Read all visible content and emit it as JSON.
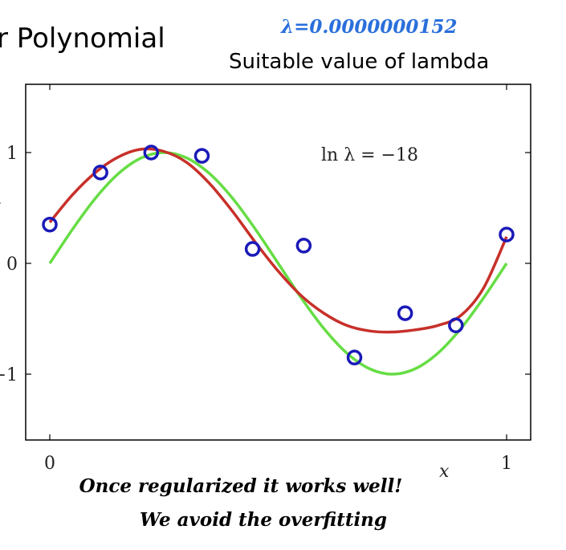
{
  "header": {
    "title_fragment": "r Polynomial",
    "lambda_value": "λ=0.0000000152",
    "subtitle": "Suitable value of lambda"
  },
  "caption": {
    "line1": "Once regularized it works well!",
    "line2": "We avoid the overfitting"
  },
  "colors": {
    "points": "#1a1ab8",
    "fitted": "#c8302a",
    "true_curve": "#66dd44",
    "lambda_text": "#2a6fdb"
  },
  "chart_data": {
    "type": "line",
    "annotation": "ln λ = −18",
    "xlabel": "x",
    "ylabel": "t",
    "xlim": [
      -0.05,
      1.05
    ],
    "ylim": [
      -1.6,
      1.6
    ],
    "x_ticks": [
      0,
      1
    ],
    "y_ticks": [
      -1,
      0,
      1
    ],
    "grid": false,
    "points": {
      "x": [
        0,
        0.111,
        0.222,
        0.333,
        0.444,
        0.556,
        0.667,
        0.778,
        0.889,
        1
      ],
      "y": [
        0.35,
        0.82,
        1.0,
        0.97,
        0.13,
        0.16,
        -0.85,
        -0.45,
        -0.56,
        0.26
      ]
    },
    "series": [
      {
        "x": [
          0,
          0.05,
          0.1,
          0.15,
          0.2,
          0.25,
          0.3,
          0.35,
          0.4,
          0.45,
          0.5,
          0.55,
          0.6,
          0.65,
          0.7,
          0.75,
          0.8,
          0.85,
          0.9,
          0.95,
          1
        ],
        "y": [
          0.37,
          0.62,
          0.82,
          0.96,
          1.03,
          1.01,
          0.91,
          0.72,
          0.47,
          0.19,
          -0.07,
          -0.29,
          -0.45,
          -0.56,
          -0.61,
          -0.62,
          -0.6,
          -0.56,
          -0.47,
          -0.22,
          0.24
        ]
      },
      {
        "x": [
          0,
          0.05,
          0.1,
          0.15,
          0.2,
          0.25,
          0.3,
          0.35,
          0.4,
          0.45,
          0.5,
          0.55,
          0.6,
          0.65,
          0.7,
          0.75,
          0.8,
          0.85,
          0.9,
          0.95,
          1
        ],
        "y": [
          0.0,
          0.309,
          0.588,
          0.809,
          0.951,
          1.0,
          0.951,
          0.809,
          0.588,
          0.309,
          0.0,
          -0.309,
          -0.588,
          -0.809,
          -0.951,
          -1.0,
          -0.951,
          -0.809,
          -0.588,
          -0.309,
          0.0
        ]
      }
    ]
  }
}
